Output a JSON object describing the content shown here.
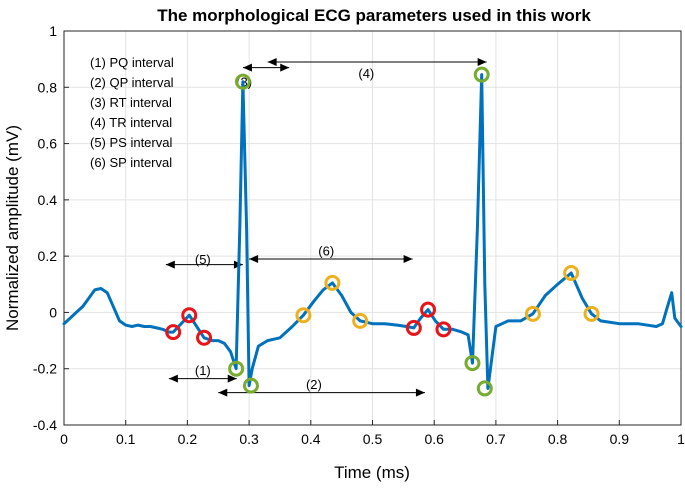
{
  "chart_data": {
    "type": "line",
    "title": "The morphological ECG parameters used in this work",
    "xlabel": "Time (ms)",
    "ylabel": "Normalized amplitude (mV)",
    "xlim": [
      0,
      1
    ],
    "ylim": [
      -0.4,
      1
    ],
    "xticks": [
      "0",
      "0.1",
      "0.2",
      "0.3",
      "0.4",
      "0.5",
      "0.6",
      "0.7",
      "0.8",
      "0.9",
      "1"
    ],
    "yticks": [
      "-0.4",
      "-0.2",
      "0",
      "0.2",
      "0.4",
      "0.6",
      "0.8",
      "1"
    ],
    "grid": true,
    "legend_placement": "top-left",
    "legend": [
      "(1) PQ interval",
      "(2) QP interval",
      "(3) RT interval",
      "(4) TR interval",
      "(5) PS interval",
      "(6) SP interval"
    ],
    "colors": {
      "signal": "#0072BD",
      "p_wave_markers": "#E8141A",
      "qrs_markers": "#77AC30",
      "t_wave_markers": "#EDB120"
    },
    "series": [
      {
        "x": [
          0.0,
          0.01,
          0.02,
          0.03,
          0.04,
          0.05,
          0.06,
          0.07,
          0.08,
          0.09,
          0.1,
          0.11,
          0.12,
          0.13,
          0.14,
          0.15,
          0.16,
          0.17,
          0.177,
          0.19,
          0.203,
          0.215,
          0.227,
          0.24,
          0.25,
          0.26,
          0.27,
          0.279,
          0.285,
          0.29,
          0.296,
          0.3,
          0.305,
          0.315,
          0.33,
          0.35,
          0.37,
          0.388,
          0.405,
          0.42,
          0.435,
          0.45,
          0.465,
          0.48,
          0.5,
          0.52,
          0.54,
          0.555,
          0.567,
          0.578,
          0.59,
          0.602,
          0.615,
          0.63,
          0.645,
          0.655,
          0.662,
          0.67,
          0.677,
          0.682,
          0.687,
          0.7,
          0.72,
          0.74,
          0.76,
          0.78,
          0.8,
          0.822,
          0.84,
          0.855,
          0.87,
          0.9,
          0.93,
          0.96,
          0.97,
          0.978,
          0.985,
          0.99,
          1.0
        ],
        "y": [
          -0.04,
          -0.02,
          0.0,
          0.02,
          0.05,
          0.08,
          0.085,
          0.07,
          0.02,
          -0.03,
          -0.045,
          -0.05,
          -0.045,
          -0.05,
          -0.05,
          -0.055,
          -0.06,
          -0.07,
          -0.07,
          -0.04,
          -0.01,
          -0.05,
          -0.09,
          -0.1,
          -0.1,
          -0.11,
          -0.14,
          -0.2,
          0.3,
          0.82,
          0.3,
          -0.26,
          -0.2,
          -0.12,
          -0.1,
          -0.09,
          -0.05,
          -0.01,
          0.04,
          0.08,
          0.105,
          0.06,
          0.0,
          -0.03,
          -0.04,
          -0.04,
          -0.045,
          -0.05,
          -0.055,
          -0.02,
          0.01,
          -0.03,
          -0.06,
          -0.06,
          -0.07,
          -0.08,
          -0.18,
          0.3,
          0.845,
          0.1,
          -0.27,
          -0.05,
          -0.03,
          -0.03,
          -0.005,
          0.06,
          0.1,
          0.14,
          0.05,
          -0.005,
          -0.03,
          -0.04,
          -0.04,
          -0.05,
          -0.04,
          0.02,
          0.07,
          -0.02,
          -0.05
        ]
      }
    ],
    "markers": {
      "p_wave": [
        [
          0.177,
          -0.07
        ],
        [
          0.203,
          -0.01
        ],
        [
          0.227,
          -0.09
        ],
        [
          0.567,
          -0.055
        ],
        [
          0.59,
          0.01
        ],
        [
          0.615,
          -0.06
        ]
      ],
      "qrs": [
        [
          0.279,
          -0.2
        ],
        [
          0.29,
          0.82
        ],
        [
          0.303,
          -0.26
        ],
        [
          0.662,
          -0.18
        ],
        [
          0.677,
          0.845
        ],
        [
          0.682,
          -0.27
        ]
      ],
      "t_wave": [
        [
          0.388,
          -0.01
        ],
        [
          0.435,
          0.105
        ],
        [
          0.48,
          -0.03
        ],
        [
          0.76,
          -0.005
        ],
        [
          0.822,
          0.14
        ],
        [
          0.855,
          -0.005
        ]
      ]
    },
    "annotations": [
      {
        "label": "(1)",
        "x_from": 0.17,
        "x_to": 0.28,
        "y": -0.235,
        "label_x": 0.225,
        "label_y": -0.205
      },
      {
        "label": "(2)",
        "x_from": 0.25,
        "x_to": 0.585,
        "y": -0.285,
        "label_x": 0.405,
        "label_y": -0.255
      },
      {
        "label": "(3)",
        "x_from": 0.29,
        "x_to": 0.365,
        "y": 0.87,
        "label_x": 0.292,
        "label_y": 0.82
      },
      {
        "label": "(4)",
        "x_from": 0.33,
        "x_to": 0.685,
        "y": 0.89,
        "label_x": 0.49,
        "label_y": 0.85
      },
      {
        "label": "(5)",
        "x_from": 0.165,
        "x_to": 0.29,
        "y": 0.17,
        "label_x": 0.225,
        "label_y": 0.19
      },
      {
        "label": "(6)",
        "x_from": 0.3,
        "x_to": 0.565,
        "y": 0.19,
        "label_x": 0.425,
        "label_y": 0.22
      }
    ]
  }
}
